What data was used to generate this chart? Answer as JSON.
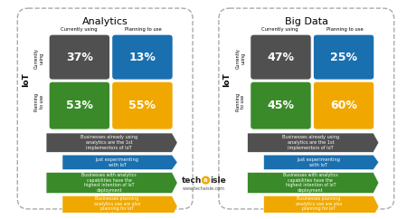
{
  "title_left": "Analytics",
  "title_right": "Big Data",
  "col_labels": [
    "Currently using",
    "Planning to use"
  ],
  "row_label_current": "Currently\nusing",
  "row_label_planning": "Planning\nto use",
  "row_label_iot": "IoT",
  "values_left": [
    [
      "37%",
      "13%"
    ],
    [
      "53%",
      "55%"
    ]
  ],
  "values_right": [
    [
      "47%",
      "25%"
    ],
    [
      "45%",
      "60%"
    ]
  ],
  "color_dark": "#505050",
  "color_blue": "#1a6faf",
  "color_green": "#3a8a2a",
  "color_orange": "#f0a800",
  "legend_dark": "Businesses already using\nanalytics are the 1st\nimplementors of IoT",
  "legend_blue": "Just experimenting\nwith IoT",
  "legend_green": "Businesses with analytics\ncapabilities have the\nhighest intention of IoT\ndeployment",
  "legend_orange": "Businesses planning\nanalytics use are also\nplanning for IoT\ndeployment",
  "techaisle_color": "#f0a800",
  "website_text": "www.techaisle.com",
  "background": "#ffffff"
}
